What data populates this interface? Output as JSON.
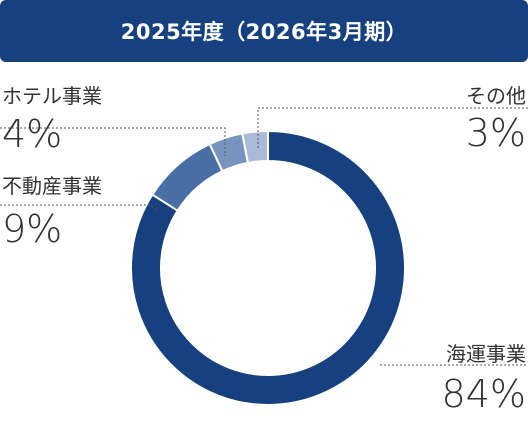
{
  "header": {
    "title": "2025年度（2026年3月期）"
  },
  "chart_data": {
    "type": "pie",
    "title": "2025年度（2026年3月期）",
    "donut": true,
    "categories": [
      "海運事業",
      "不動産事業",
      "ホテル事業",
      "その他"
    ],
    "values": [
      84,
      9,
      4,
      3
    ],
    "value_labels": [
      "84%",
      "9%",
      "4%",
      "3%"
    ],
    "colors": [
      "#17407f",
      "#4a6fa5",
      "#7893bd",
      "#a9bbd8"
    ]
  }
}
